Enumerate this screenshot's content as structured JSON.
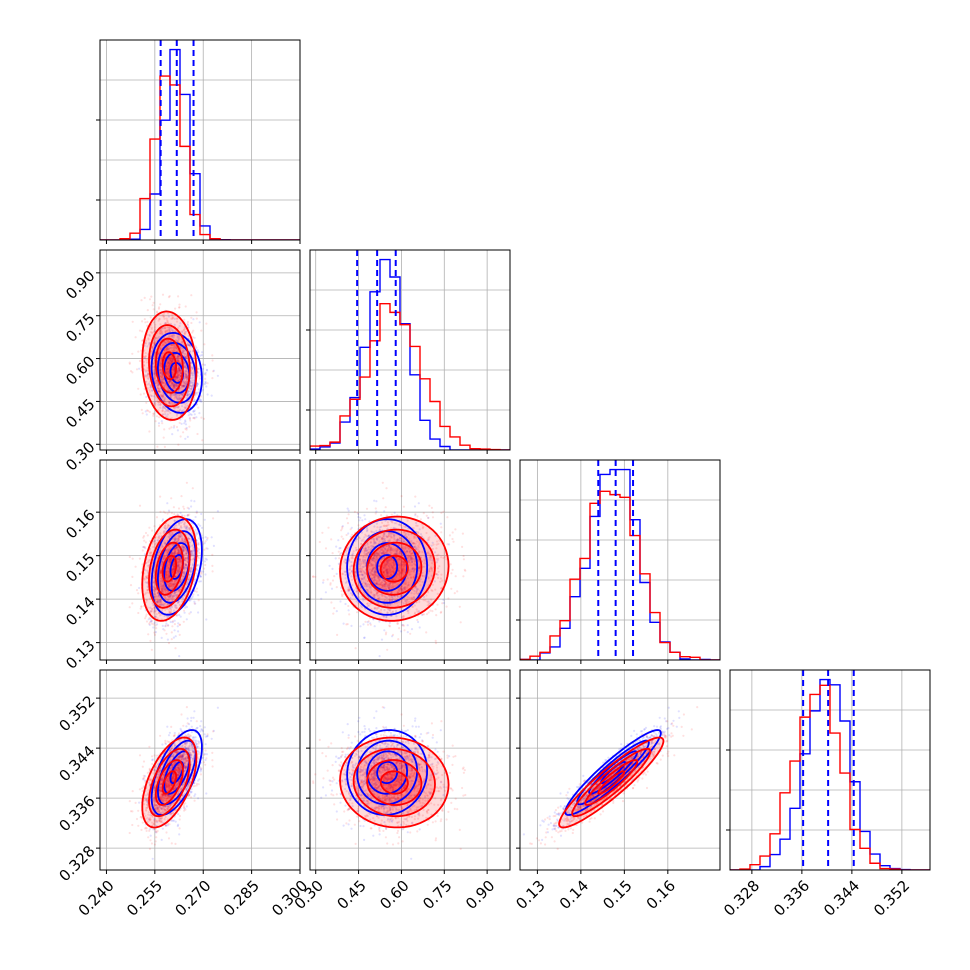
{
  "chart_data": {
    "type": "corner",
    "grid": true,
    "parameters": [
      {
        "range": [
          0.238,
          0.3
        ],
        "ticks": [
          "0.240",
          "0.255",
          "0.270",
          "0.285",
          "0.300"
        ],
        "tick_values": [
          0.24,
          0.255,
          0.27,
          0.285,
          0.3
        ]
      },
      {
        "range": [
          0.28,
          0.98
        ],
        "ticks": [
          "0.30",
          "0.45",
          "0.60",
          "0.75",
          "0.90"
        ],
        "tick_values": [
          0.3,
          0.45,
          0.6,
          0.75,
          0.9
        ]
      },
      {
        "range": [
          0.126,
          0.172
        ],
        "ticks": [
          "0.13",
          "0.14",
          "0.15",
          "0.16"
        ],
        "tick_values": [
          0.13,
          0.14,
          0.15,
          0.16
        ]
      },
      {
        "range": [
          0.3245,
          0.3565
        ],
        "ticks": [
          "0.328",
          "0.336",
          "0.344",
          "0.352"
        ],
        "tick_values": [
          0.328,
          0.336,
          0.344,
          0.352
        ]
      }
    ],
    "series": [
      {
        "color": "#0000ff",
        "means": [
          0.2618,
          0.55,
          0.1474,
          0.3401
        ],
        "sigmas": [
          0.0039,
          0.07,
          0.0055,
          0.0034
        ],
        "correlations": [
          [
            1,
            -0.15,
            0.35,
            0.6
          ],
          [
            -0.15,
            1,
            0.0,
            0.05
          ],
          [
            0.35,
            0.0,
            1,
            0.93
          ],
          [
            0.6,
            0.05,
            0.93,
            1
          ]
        ],
        "quantiles": [
          [
            0.2568,
            0.2618,
            0.267
          ],
          [
            0.445,
            0.515,
            0.58
          ],
          [
            0.144,
            0.148,
            0.152
          ],
          [
            0.3362,
            0.3402,
            0.3443
          ]
        ]
      },
      {
        "color": "#ff0000",
        "means": [
          0.2595,
          0.575,
          0.147,
          0.3385
        ],
        "sigmas": [
          0.0042,
          0.095,
          0.006,
          0.0036
        ],
        "correlations": [
          [
            1,
            -0.1,
            0.3,
            0.55
          ],
          [
            -0.1,
            1,
            0.05,
            -0.05
          ],
          [
            0.3,
            0.05,
            1,
            0.92
          ],
          [
            0.55,
            -0.05,
            0.92,
            1
          ]
        ]
      }
    ]
  }
}
